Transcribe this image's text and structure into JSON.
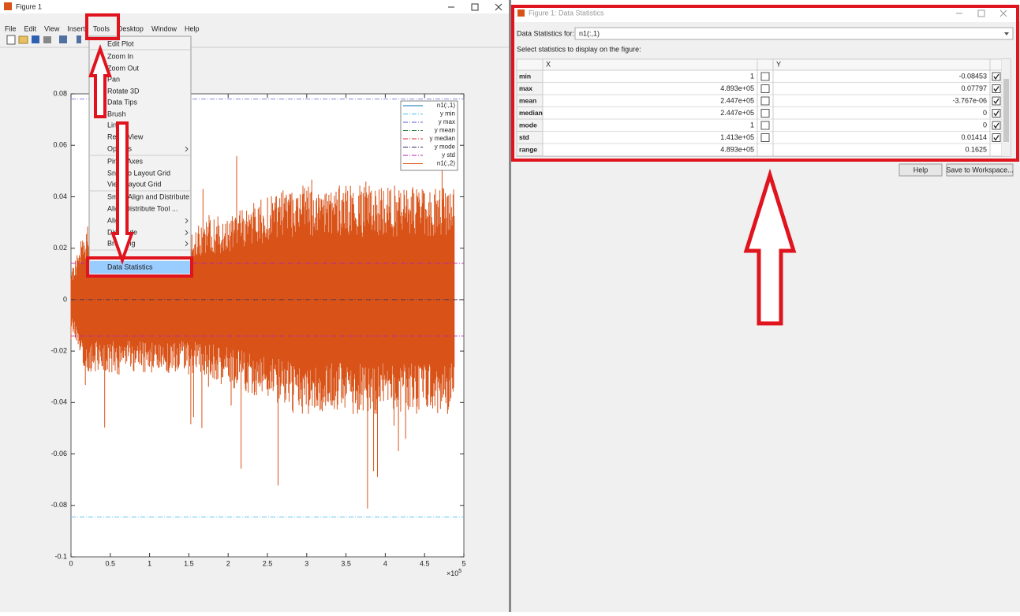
{
  "figure_window": {
    "title": "Figure 1",
    "menu": [
      "File",
      "Edit",
      "View",
      "Insert",
      "Tools",
      "Desktop",
      "Window",
      "Help"
    ],
    "tools_menu": [
      "Edit Plot",
      "Zoom In",
      "Zoom Out",
      "Pan",
      "Rotate 3D",
      "Data Tips",
      "Brush",
      "Link",
      "Reset View",
      "Options",
      "Pin to Axes",
      "Snap to Layout Grid",
      "View Layout Grid",
      "Smart Align and Distribute",
      "Align Distribute Tool ...",
      "Align",
      "Distribute",
      "Brushing",
      "Data Statistics"
    ]
  },
  "chart_data": {
    "type": "line",
    "xlim": [
      0,
      5
    ],
    "xticks": [
      0,
      0.5,
      1,
      1.5,
      2,
      2.5,
      3,
      3.5,
      4,
      4.5,
      5
    ],
    "x_multiplier": "×10",
    "x_multiplier_exponent": "5",
    "ylim": [
      -0.1,
      0.08
    ],
    "yticks": [
      -0.1,
      -0.08,
      -0.06,
      -0.04,
      -0.02,
      0,
      0.02,
      0.04,
      0.06,
      0.08
    ],
    "series": [
      {
        "name": "n1(:,1)",
        "color": "#0072bd",
        "style": "solid"
      },
      {
        "name": "y min",
        "color": "#4dbeee",
        "style": "dashdot",
        "value": -0.08453
      },
      {
        "name": "y max",
        "color": "#5b5bd6",
        "style": "dashdot",
        "value": 0.07797
      },
      {
        "name": "y mean",
        "color": "#2f7f3f",
        "style": "dashdot",
        "value": -3.767e-06
      },
      {
        "name": "y median",
        "color": "#d03030",
        "style": "dashdot",
        "value": 0
      },
      {
        "name": "y mode",
        "color": "#303060",
        "style": "dashdot",
        "value": 0
      },
      {
        "name": "y std",
        "color": "#b020b0",
        "style": "dashdot",
        "value": 0.01414,
        "about": "y mean"
      },
      {
        "name": "n1(:,2)",
        "color": "#d95319",
        "style": "solid"
      }
    ]
  },
  "stats_dialog": {
    "title": "Figure 1: Data Statistics",
    "for_label": "Data Statistics for:",
    "for_value": "n1(:,1)",
    "instruction": "Select statistics to display on the figure:",
    "columns": [
      "X",
      "Y"
    ],
    "rows": [
      {
        "name": "min",
        "x": "1",
        "x_checked": false,
        "y": "-0.08453",
        "y_checked": true
      },
      {
        "name": "max",
        "x": "4.893e+05",
        "x_checked": false,
        "y": "0.07797",
        "y_checked": true
      },
      {
        "name": "mean",
        "x": "2.447e+05",
        "x_checked": false,
        "y": "-3.767e-06",
        "y_checked": true
      },
      {
        "name": "median",
        "x": "2.447e+05",
        "x_checked": false,
        "y": "0",
        "y_checked": true
      },
      {
        "name": "mode",
        "x": "1",
        "x_checked": false,
        "y": "0",
        "y_checked": true
      },
      {
        "name": "std",
        "x": "1.413e+05",
        "x_checked": false,
        "y": "0.01414",
        "y_checked": true
      },
      {
        "name": "range",
        "x": "4.893e+05",
        "y": "0.1625"
      }
    ],
    "buttons": [
      "Help",
      "Save to Workspace..."
    ]
  }
}
